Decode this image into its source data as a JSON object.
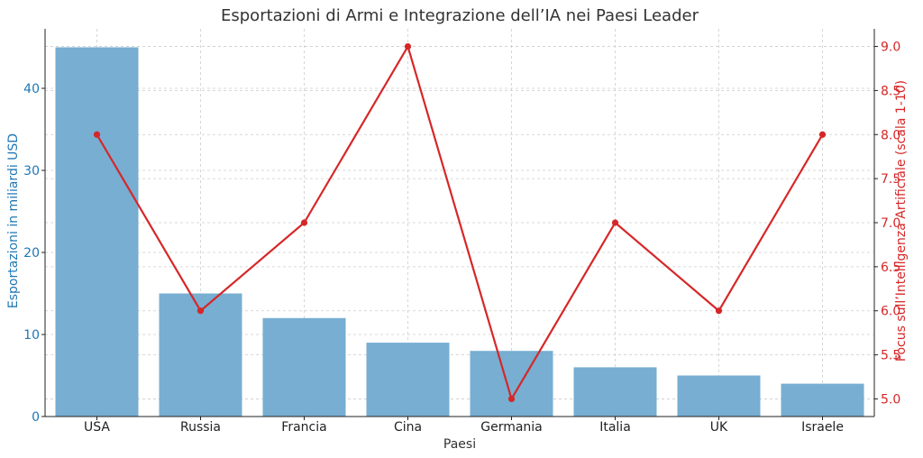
{
  "chart_data": {
    "type": "bar+line",
    "title": "Esportazioni di Armi e Integrazione dell’IA nei Paesi Leader",
    "xlabel": "Paesi",
    "categories": [
      "USA",
      "Russia",
      "Francia",
      "Cina",
      "Germania",
      "Italia",
      "UK",
      "Israele"
    ],
    "series": [
      {
        "type": "bar",
        "axis": "left",
        "ylabel": "Esportazioni in miliardi USD",
        "values": [
          45,
          15,
          12,
          9,
          8,
          6,
          5,
          4
        ],
        "color": "#77aed2"
      },
      {
        "type": "line",
        "axis": "right",
        "ylabel": "Focus sull’Intelligenza Artificiale (scala 1-10)",
        "values": [
          8,
          6,
          7,
          9,
          5,
          7,
          6,
          8
        ],
        "color": "#d62728"
      }
    ],
    "y_left": {
      "ylim": [
        0,
        47.25
      ],
      "ticks": [
        0,
        10,
        20,
        30,
        40
      ],
      "color": "#1f77b4"
    },
    "y_right": {
      "ylim": [
        4.8,
        9.2
      ],
      "ticks": [
        "5.0",
        "5.5",
        "6.0",
        "6.5",
        "7.0",
        "7.5",
        "8.0",
        "8.5",
        "9.0"
      ],
      "color": "#d62728"
    },
    "grid": true
  }
}
